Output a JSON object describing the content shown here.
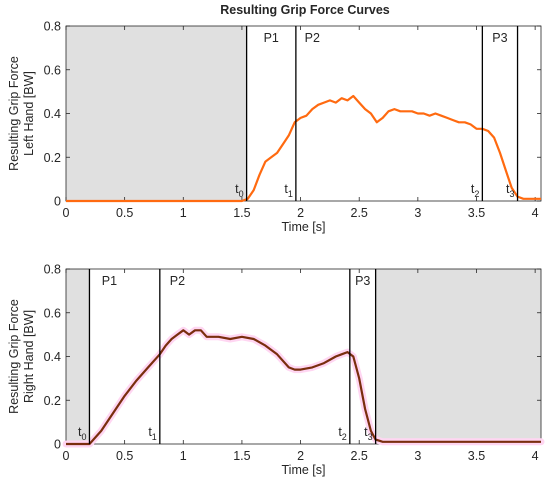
{
  "figure_title": "Resulting Grip Force Curves",
  "colors": {
    "shading": "#e0e0e0",
    "line_phase": "#000000",
    "left_curve": "#ff6a10",
    "right_curve": "#7a2e0e",
    "right_halo": "#ffd6f2"
  },
  "chart_data": [
    {
      "type": "line",
      "title": "Resulting Grip Force Curves",
      "xlabel": "Time [s]",
      "ylabel": [
        "Resulting Grip Force",
        "Left Hand [BW]"
      ],
      "xlim": [
        0,
        4.05
      ],
      "ylim": [
        0,
        0.8
      ],
      "xticks": [
        0,
        0.5,
        1,
        1.5,
        2,
        2.5,
        3,
        3.5,
        4
      ],
      "xtick_labels": [
        "0",
        "0.5",
        "1",
        "1.5",
        "2",
        "2.5",
        "3",
        "3.5",
        "4"
      ],
      "yticks": [
        0,
        0.2,
        0.4,
        0.6,
        0.8
      ],
      "ytick_labels": [
        "0",
        "0.2",
        "0.4",
        "0.6",
        "0.8"
      ],
      "grid": false,
      "shaded_regions": [
        [
          0,
          1.54
        ]
      ],
      "phase_lines": [
        1.54,
        1.96,
        3.55,
        3.85
      ],
      "phase_labels": [
        {
          "text": "P1",
          "x": 1.75
        },
        {
          "text": "P2",
          "x": 2.1
        },
        {
          "text": "P3",
          "x": 3.7
        }
      ],
      "markers": [
        {
          "t": "t",
          "sub": "0",
          "x": 1.54
        },
        {
          "t": "t",
          "sub": "1",
          "x": 1.96
        },
        {
          "t": "t",
          "sub": "2",
          "x": 3.55
        },
        {
          "t": "t",
          "sub": "3",
          "x": 3.85
        }
      ],
      "series": [
        {
          "x": [
            0,
            1.5,
            1.55,
            1.6,
            1.65,
            1.7,
            1.75,
            1.8,
            1.85,
            1.9,
            1.95,
            2.0,
            2.05,
            2.1,
            2.15,
            2.2,
            2.25,
            2.3,
            2.35,
            2.4,
            2.45,
            2.5,
            2.55,
            2.6,
            2.65,
            2.7,
            2.75,
            2.8,
            2.85,
            2.9,
            2.95,
            3.0,
            3.05,
            3.1,
            3.15,
            3.2,
            3.25,
            3.3,
            3.35,
            3.4,
            3.45,
            3.5,
            3.55,
            3.6,
            3.65,
            3.7,
            3.75,
            3.8,
            3.85,
            3.9,
            4.05
          ],
          "values": [
            0,
            0,
            0.01,
            0.05,
            0.12,
            0.18,
            0.2,
            0.22,
            0.26,
            0.3,
            0.36,
            0.38,
            0.39,
            0.42,
            0.44,
            0.45,
            0.46,
            0.45,
            0.47,
            0.46,
            0.48,
            0.45,
            0.42,
            0.4,
            0.36,
            0.38,
            0.41,
            0.42,
            0.41,
            0.41,
            0.41,
            0.4,
            0.4,
            0.39,
            0.4,
            0.39,
            0.38,
            0.37,
            0.36,
            0.36,
            0.35,
            0.33,
            0.33,
            0.32,
            0.29,
            0.22,
            0.14,
            0.06,
            0.02,
            0.01,
            0.01
          ]
        }
      ]
    },
    {
      "type": "line",
      "xlabel": "Time [s]",
      "ylabel": [
        "Resulting Grip Force",
        "Right Hand [BW]"
      ],
      "xlim": [
        0,
        4.05
      ],
      "ylim": [
        0,
        0.8
      ],
      "xticks": [
        0,
        0.5,
        1,
        1.5,
        2,
        2.5,
        3,
        3.5,
        4
      ],
      "xtick_labels": [
        "0",
        "0.5",
        "1",
        "1.5",
        "2",
        "2.5",
        "3",
        "3.5",
        "4"
      ],
      "yticks": [
        0,
        0.2,
        0.4,
        0.6,
        0.8
      ],
      "ytick_labels": [
        "0",
        "0.2",
        "0.4",
        "0.6",
        "0.8"
      ],
      "grid": false,
      "shaded_regions": [
        [
          0,
          0.2
        ],
        [
          2.64,
          4.05
        ]
      ],
      "phase_lines": [
        0.2,
        0.8,
        2.42,
        2.64
      ],
      "phase_labels": [
        {
          "text": "P1",
          "x": 0.37
        },
        {
          "text": "P2",
          "x": 0.95
        },
        {
          "text": "P3",
          "x": 2.53
        }
      ],
      "markers": [
        {
          "t": "t",
          "sub": "0",
          "x": 0.2
        },
        {
          "t": "t",
          "sub": "1",
          "x": 0.8
        },
        {
          "t": "t",
          "sub": "2",
          "x": 2.42
        },
        {
          "t": "t",
          "sub": "3",
          "x": 2.64
        }
      ],
      "series": [
        {
          "x": [
            0,
            0.2,
            0.3,
            0.4,
            0.5,
            0.6,
            0.7,
            0.8,
            0.85,
            0.9,
            0.95,
            1.0,
            1.05,
            1.1,
            1.15,
            1.2,
            1.3,
            1.4,
            1.5,
            1.6,
            1.7,
            1.8,
            1.9,
            1.95,
            2.0,
            2.1,
            2.2,
            2.3,
            2.35,
            2.4,
            2.45,
            2.5,
            2.55,
            2.6,
            2.64,
            2.7,
            4.05
          ],
          "values": [
            0,
            0,
            0.06,
            0.14,
            0.22,
            0.29,
            0.35,
            0.41,
            0.45,
            0.48,
            0.5,
            0.52,
            0.5,
            0.52,
            0.52,
            0.49,
            0.49,
            0.48,
            0.49,
            0.48,
            0.45,
            0.41,
            0.35,
            0.34,
            0.34,
            0.35,
            0.37,
            0.4,
            0.41,
            0.42,
            0.4,
            0.3,
            0.16,
            0.06,
            0.02,
            0.01,
            0.01
          ]
        }
      ]
    }
  ]
}
